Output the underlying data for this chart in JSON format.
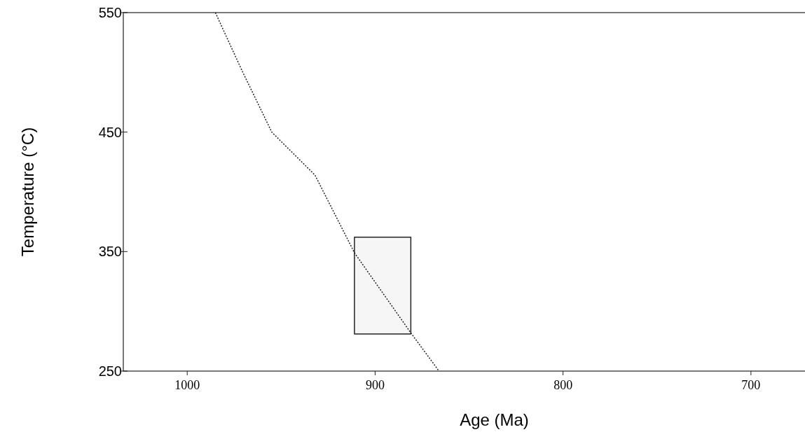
{
  "chart_data": {
    "type": "line",
    "xlabel": "Age (Ma)",
    "ylabel": "Temperature (°C)",
    "xlim": [
      1034,
      669
    ],
    "xticks": [
      1000,
      900,
      800,
      700
    ],
    "ylim": [
      250,
      550
    ],
    "yticks": [
      250,
      350,
      450,
      550
    ],
    "series": [
      {
        "color": "#222222",
        "x": [
          985,
          971,
          955,
          932,
          911,
          881,
          866
        ],
        "values": [
          550,
          502,
          450,
          414,
          349,
          282,
          250
        ],
        "line_style": "dotted"
      },
      {
        "color": "#222222",
        "x": [
          911,
          881
        ],
        "values": [
          null,
          null
        ],
        "lower": [
          281,
          281
        ],
        "upper": [
          362,
          362
        ],
        "line_style": "solid"
      }
    ]
  }
}
